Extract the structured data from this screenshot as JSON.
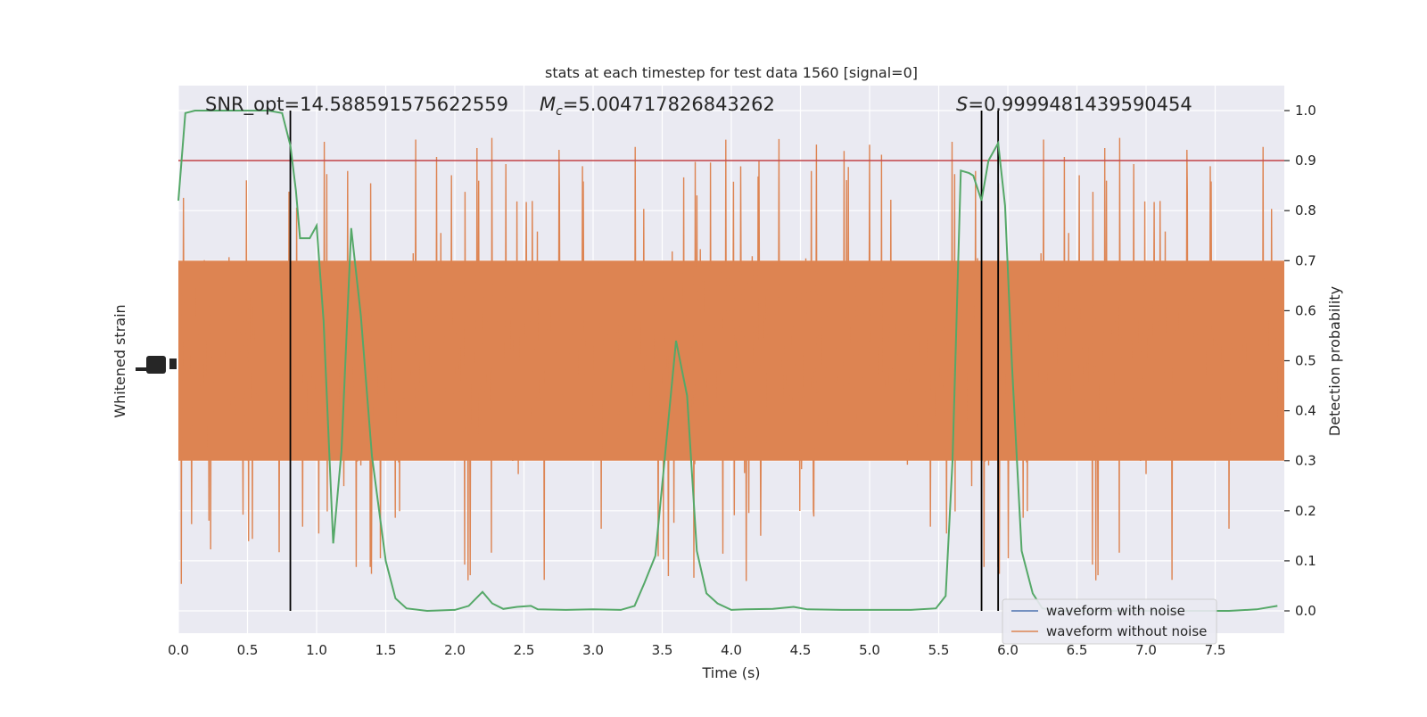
{
  "chart_data": {
    "type": "line",
    "title": "stats at each timestep for test data 1560 [signal=0]",
    "xlabel": "Time (s)",
    "ylabel_left": "Whitened strain",
    "ylabel_right": "Detection probability",
    "xlim": [
      0,
      8.0
    ],
    "ylim_right": [
      -0.05,
      1.05
    ],
    "x_ticks": [
      "0.0",
      "0.5",
      "1.0",
      "1.5",
      "2.0",
      "2.5",
      "3.0",
      "3.5",
      "4.0",
      "4.5",
      "5.0",
      "5.5",
      "6.0",
      "6.5",
      "7.0",
      "7.5"
    ],
    "y_ticks_right": [
      "0.0",
      "0.1",
      "0.2",
      "0.3",
      "0.4",
      "0.5",
      "0.6",
      "0.7",
      "0.8",
      "0.9",
      "1.0"
    ],
    "grid": true,
    "legend_position": "lower-right",
    "annotations": {
      "snr": "SNR_opt=14.588591575622559",
      "mc_symbol": "M",
      "mc_sub": "c",
      "mc_value": "=5.004717826843262",
      "s_symbol": "S",
      "s_value": "=0.9999481439590454"
    },
    "threshold": 0.9,
    "vertical_markers_s": [
      0.81,
      5.81,
      5.93
    ],
    "series": [
      {
        "name": "waveform with noise",
        "color": "#4c72b0",
        "values": []
      },
      {
        "name": "waveform without noise",
        "color": "#dd8452",
        "band_core": [
          0.3,
          0.7
        ],
        "envelope_range": [
          0.04,
          1.0
        ],
        "note_values": "dense noise trace spanning the plot"
      },
      {
        "name": "detection probability",
        "color": "#55a868",
        "points": [
          [
            0.0,
            0.82
          ],
          [
            0.05,
            0.995
          ],
          [
            0.12,
            1.0
          ],
          [
            0.3,
            1.0
          ],
          [
            0.5,
            1.0
          ],
          [
            0.65,
            1.0
          ],
          [
            0.75,
            0.995
          ],
          [
            0.81,
            0.93
          ],
          [
            0.85,
            0.84
          ],
          [
            0.88,
            0.745
          ],
          [
            0.92,
            0.745
          ],
          [
            0.95,
            0.745
          ],
          [
            1.0,
            0.77
          ],
          [
            1.05,
            0.58
          ],
          [
            1.12,
            0.135
          ],
          [
            1.18,
            0.32
          ],
          [
            1.25,
            0.765
          ],
          [
            1.32,
            0.59
          ],
          [
            1.4,
            0.31
          ],
          [
            1.5,
            0.1
          ],
          [
            1.57,
            0.025
          ],
          [
            1.65,
            0.005
          ],
          [
            1.8,
            0.0
          ],
          [
            2.0,
            0.002
          ],
          [
            2.1,
            0.01
          ],
          [
            2.2,
            0.038
          ],
          [
            2.27,
            0.015
          ],
          [
            2.35,
            0.004
          ],
          [
            2.45,
            0.008
          ],
          [
            2.55,
            0.01
          ],
          [
            2.6,
            0.003
          ],
          [
            2.8,
            0.002
          ],
          [
            3.0,
            0.003
          ],
          [
            3.2,
            0.002
          ],
          [
            3.3,
            0.01
          ],
          [
            3.37,
            0.055
          ],
          [
            3.45,
            0.11
          ],
          [
            3.52,
            0.31
          ],
          [
            3.6,
            0.54
          ],
          [
            3.68,
            0.43
          ],
          [
            3.75,
            0.12
          ],
          [
            3.82,
            0.035
          ],
          [
            3.9,
            0.015
          ],
          [
            4.0,
            0.002
          ],
          [
            4.1,
            0.003
          ],
          [
            4.3,
            0.004
          ],
          [
            4.45,
            0.008
          ],
          [
            4.55,
            0.003
          ],
          [
            4.8,
            0.002
          ],
          [
            5.0,
            0.002
          ],
          [
            5.3,
            0.002
          ],
          [
            5.48,
            0.005
          ],
          [
            5.55,
            0.03
          ],
          [
            5.6,
            0.3
          ],
          [
            5.66,
            0.88
          ],
          [
            5.72,
            0.875
          ],
          [
            5.75,
            0.87
          ],
          [
            5.81,
            0.82
          ],
          [
            5.86,
            0.9
          ],
          [
            5.93,
            0.935
          ],
          [
            5.98,
            0.81
          ],
          [
            6.03,
            0.49
          ],
          [
            6.1,
            0.12
          ],
          [
            6.18,
            0.035
          ],
          [
            6.25,
            0.005
          ],
          [
            6.4,
            0.0
          ],
          [
            6.7,
            0.0
          ],
          [
            7.0,
            0.0
          ],
          [
            7.3,
            0.0
          ],
          [
            7.6,
            0.0
          ],
          [
            7.8,
            0.003
          ],
          [
            7.95,
            0.01
          ]
        ]
      }
    ]
  }
}
